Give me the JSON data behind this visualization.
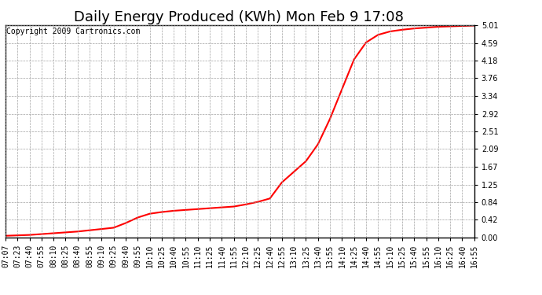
{
  "title": "Daily Energy Produced (KWh) Mon Feb 9 17:08",
  "copyright_text": "Copyright 2009 Cartronics.com",
  "line_color": "#ff0000",
  "background_color": "#ffffff",
  "plot_bg_color": "#ffffff",
  "grid_color": "#999999",
  "yticks": [
    0.0,
    0.42,
    0.84,
    1.25,
    1.67,
    2.09,
    2.51,
    2.92,
    3.34,
    3.76,
    4.18,
    4.59,
    5.01
  ],
  "ylim": [
    0.0,
    5.01
  ],
  "x_labels": [
    "07:07",
    "07:23",
    "07:40",
    "07:55",
    "08:10",
    "08:25",
    "08:40",
    "08:55",
    "09:10",
    "09:25",
    "09:40",
    "09:55",
    "10:10",
    "10:25",
    "10:40",
    "10:55",
    "11:10",
    "11:25",
    "11:40",
    "11:55",
    "12:10",
    "12:25",
    "12:40",
    "12:55",
    "13:10",
    "13:25",
    "13:40",
    "13:55",
    "14:10",
    "14:25",
    "14:40",
    "14:55",
    "15:10",
    "15:25",
    "15:40",
    "15:55",
    "16:10",
    "16:25",
    "16:40",
    "16:55"
  ],
  "y_values": [
    0.04,
    0.05,
    0.06,
    0.08,
    0.1,
    0.12,
    0.14,
    0.17,
    0.2,
    0.23,
    0.34,
    0.47,
    0.56,
    0.6,
    0.63,
    0.65,
    0.67,
    0.69,
    0.71,
    0.73,
    0.78,
    0.84,
    0.92,
    1.3,
    1.55,
    1.8,
    2.2,
    2.8,
    3.5,
    4.2,
    4.6,
    4.78,
    4.86,
    4.9,
    4.93,
    4.95,
    4.97,
    4.98,
    4.99,
    5.0
  ],
  "title_fontsize": 13,
  "copyright_fontsize": 7,
  "tick_fontsize": 7,
  "line_width": 1.5
}
